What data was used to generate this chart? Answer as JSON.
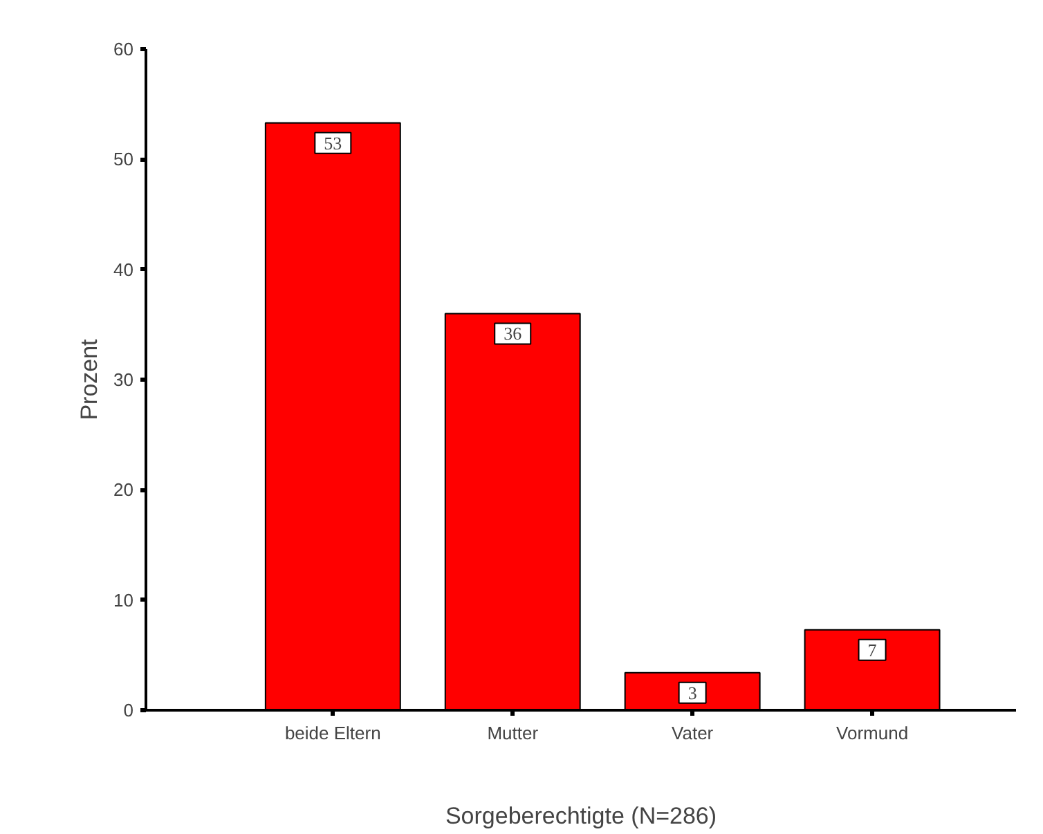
{
  "chart_data": {
    "type": "bar",
    "xlabel": "Sorgeberechtigte (N=286)",
    "ylabel": "Prozent",
    "categories": [
      "beide Eltern",
      "Mutter",
      "Vater",
      "Vormund"
    ],
    "values": [
      53.3,
      36.0,
      3.4,
      7.3
    ],
    "value_labels": [
      "53",
      "36",
      "3",
      "7"
    ],
    "color": "#ff0000",
    "ylim": [
      0,
      60
    ],
    "yticks": [
      0,
      10,
      20,
      30,
      40,
      50,
      60
    ],
    "grid": false
  }
}
